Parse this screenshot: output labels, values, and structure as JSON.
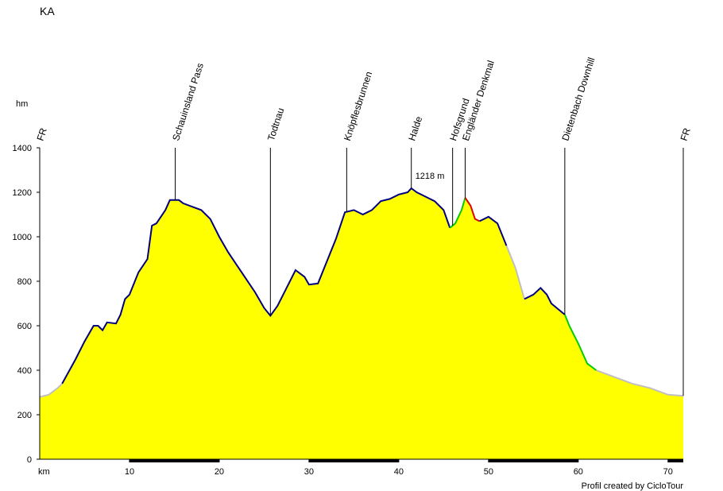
{
  "chart_data": {
    "type": "area",
    "title": "KA",
    "ylabel": "hm",
    "xlabel": "km",
    "credit": "Profil created by CicloTour",
    "xlim": [
      0,
      71.7
    ],
    "ylim": [
      0,
      1400
    ],
    "xticks": [
      10,
      20,
      30,
      40,
      50,
      60,
      70
    ],
    "yticks": [
      0,
      200,
      400,
      600,
      800,
      1000,
      1200,
      1400
    ],
    "fill": "#ffff00",
    "x": [
      0,
      1,
      2,
      2.5,
      4,
      5,
      6,
      6.5,
      7,
      7.5,
      8.5,
      9,
      9.5,
      10,
      11,
      12,
      12.5,
      13,
      14,
      14.5,
      15.5,
      16,
      18,
      19,
      20,
      21,
      22,
      23,
      24,
      25,
      25.7,
      26.5,
      27.5,
      28.5,
      29.5,
      30,
      31,
      32,
      33,
      34,
      35,
      36,
      37,
      38,
      39,
      40,
      41,
      41.4,
      42,
      43,
      44,
      45,
      45.7,
      46.3,
      47,
      47.4,
      48,
      48.5,
      49,
      50,
      51,
      52,
      53,
      54,
      55,
      55.8,
      56.5,
      57,
      58.5,
      59,
      60,
      61,
      62,
      64,
      66,
      68,
      70,
      71.7
    ],
    "values": [
      280,
      290,
      320,
      340,
      450,
      530,
      600,
      600,
      580,
      615,
      610,
      650,
      720,
      740,
      840,
      900,
      1050,
      1060,
      1120,
      1165,
      1165,
      1150,
      1120,
      1080,
      1000,
      930,
      870,
      810,
      750,
      680,
      645,
      690,
      770,
      850,
      820,
      785,
      790,
      890,
      990,
      1110,
      1120,
      1100,
      1120,
      1160,
      1170,
      1190,
      1200,
      1218,
      1200,
      1180,
      1160,
      1120,
      1040,
      1060,
      1120,
      1175,
      1140,
      1080,
      1070,
      1090,
      1060,
      960,
      860,
      720,
      740,
      770,
      740,
      700,
      650,
      600,
      520,
      430,
      400,
      370,
      340,
      320,
      290,
      285
    ],
    "segments": [
      {
        "color": "#c0c0c0",
        "from": 0,
        "to": 2.5
      },
      {
        "color": "#000080",
        "from": 2.5,
        "to": 45.7
      },
      {
        "color": "#00cc00",
        "from": 45.7,
        "to": 47.4
      },
      {
        "color": "#dd0000",
        "from": 47.4,
        "to": 49
      },
      {
        "color": "#000080",
        "from": 49,
        "to": 52
      },
      {
        "color": "#c0c0c0",
        "from": 52,
        "to": 54
      },
      {
        "color": "#000080",
        "from": 54,
        "to": 58.5
      },
      {
        "color": "#00cc00",
        "from": 58.5,
        "to": 62
      },
      {
        "color": "#c0c0c0",
        "from": 62,
        "to": 71.7
      }
    ],
    "waypoints": [
      {
        "label": "FR",
        "x": 0
      },
      {
        "label": "Schauinsland Pass",
        "x": 15.1
      },
      {
        "label": "Todtnau",
        "x": 25.7
      },
      {
        "label": "Knöpflesbrunnen",
        "x": 34.2
      },
      {
        "label": "Halde",
        "x": 41.4
      },
      {
        "label": "Hofsgrund",
        "x": 46.0
      },
      {
        "label": "Engländer Denkmal",
        "x": 47.4
      },
      {
        "label": "Dietenbach Downhill",
        "x": 58.5
      },
      {
        "label": "FR",
        "x": 71.7
      }
    ],
    "annotation": {
      "text": "1218 m",
      "x": 41.4,
      "y": 1218,
      "color": "#cc0000"
    }
  }
}
